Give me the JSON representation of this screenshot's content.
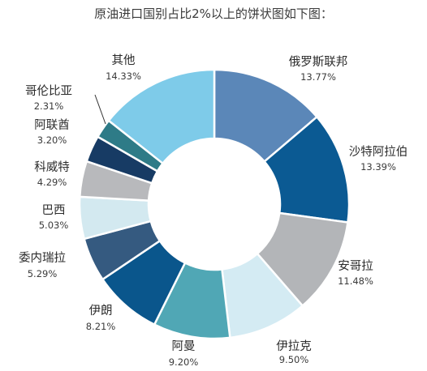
{
  "title": "原油进口国别占比2%以上的饼状图如下图：",
  "chart_data": {
    "type": "pie",
    "variant": "donut",
    "slices": [
      {
        "label": "俄罗斯联邦",
        "percent_label": "13.77%",
        "value": 13.77,
        "color": "#5b87b8"
      },
      {
        "label": "沙特阿拉伯",
        "percent_label": "13.39%",
        "value": 13.39,
        "color": "#0b5a93"
      },
      {
        "label": "安哥拉",
        "percent_label": "11.48%",
        "value": 11.48,
        "color": "#b3b5b8"
      },
      {
        "label": "伊拉克",
        "percent_label": "9.50%",
        "value": 9.5,
        "color": "#d4ebf3"
      },
      {
        "label": "阿曼",
        "percent_label": "9.20%",
        "value": 9.2,
        "color": "#50a7b5"
      },
      {
        "label": "伊朗",
        "percent_label": "8.21%",
        "value": 8.21,
        "color": "#0a568c"
      },
      {
        "label": "委内瑞拉",
        "percent_label": "5.29%",
        "value": 5.29,
        "color": "#355a80"
      },
      {
        "label": "巴西",
        "percent_label": "5.03%",
        "value": 5.03,
        "color": "#d3e9f0"
      },
      {
        "label": "科威特",
        "percent_label": "4.29%",
        "value": 4.29,
        "color": "#b8b9bc"
      },
      {
        "label": "阿联酋",
        "percent_label": "3.20%",
        "value": 3.2,
        "color": "#173b64"
      },
      {
        "label": "哥伦比亚",
        "percent_label": "2.31%",
        "value": 2.31,
        "color": "#2e7b87"
      },
      {
        "label": "其他",
        "percent_label": "14.33%",
        "value": 14.33,
        "color": "#7ecbe9"
      }
    ]
  }
}
